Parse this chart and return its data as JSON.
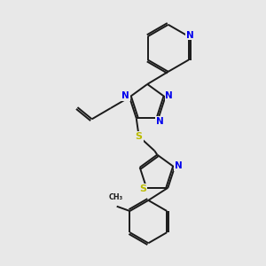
{
  "bg_color": "#e8e8e8",
  "bond_color": "#1a1a1a",
  "N_color": "#0000ee",
  "S_color": "#bbbb00",
  "line_width": 1.4,
  "figsize": [
    3.0,
    3.0
  ],
  "dpi": 100,
  "xlim": [
    0,
    10
  ],
  "ylim": [
    0,
    10
  ]
}
